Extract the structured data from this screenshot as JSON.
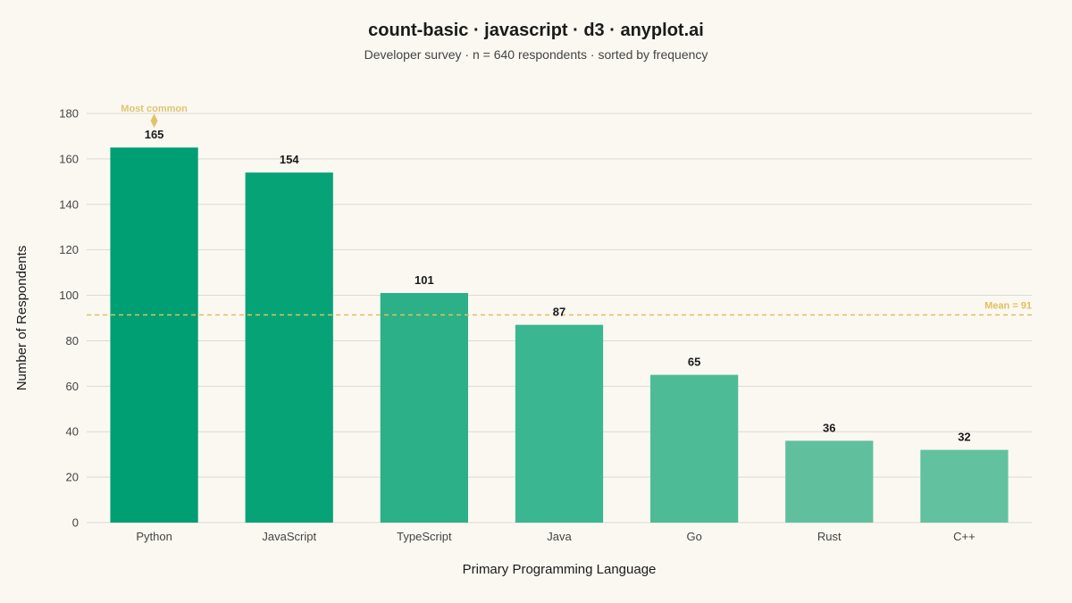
{
  "chart_data": {
    "type": "bar",
    "title": "count-basic · javascript · d3 · anyplot.ai",
    "subtitle": "Developer survey · n = 640 respondents · sorted by frequency",
    "xlabel": "Primary Programming Language",
    "ylabel": "Number of Respondents",
    "categories": [
      "Python",
      "JavaScript",
      "TypeScript",
      "Java",
      "Go",
      "Rust",
      "C++"
    ],
    "values": [
      165,
      154,
      101,
      87,
      65,
      36,
      32
    ],
    "value_labels": [
      "165",
      "154",
      "101",
      "87",
      "65",
      "36",
      "32"
    ],
    "ylim": [
      0,
      180
    ],
    "yticks": [
      0,
      20,
      40,
      60,
      80,
      100,
      120,
      140,
      160,
      180
    ],
    "ytick_labels": [
      "0",
      "20",
      "40",
      "60",
      "80",
      "100",
      "120",
      "140",
      "160",
      "180"
    ],
    "grid": true,
    "mean": {
      "value": 91.4,
      "label": "Mean = 91"
    },
    "annotation": {
      "category": "Python",
      "label": "Most common"
    }
  },
  "colors": {
    "bar_gradient": [
      "#009E73",
      "#06A377",
      "#2BB088",
      "#3AB690",
      "#4DBB96",
      "#60C09E",
      "#62C2A0"
    ],
    "mean": "#E0C060",
    "annotation": "#DFC470",
    "background": "#FAF8F1"
  }
}
